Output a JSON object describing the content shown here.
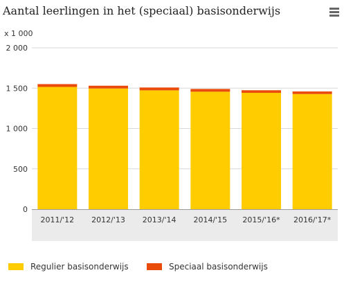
{
  "header": {
    "title": "Aantal leerlingen in het (speciaal) basisonderwijs"
  },
  "menu": {
    "icon": "menu-icon"
  },
  "colors": {
    "regulier": "#FFCC00",
    "speciaal": "#E94C0A",
    "grid": "#D8D8D8",
    "axis_band": "#EBEBEB"
  },
  "chart_data": {
    "type": "bar",
    "stacked": true,
    "unit_label": "x 1 000",
    "categories": [
      "2011/'12",
      "2012/'13",
      "2013/'14",
      "2014/'15",
      "2015/'16*",
      "2016/'17*"
    ],
    "series": [
      {
        "name": "Regulier basisonderwijs",
        "color": "#FFCC00",
        "values": [
          1515,
          1496,
          1473,
          1456,
          1442,
          1427
        ]
      },
      {
        "name": "Speciaal basisonderwijs",
        "color": "#E94C0A",
        "values": [
          35,
          34,
          35,
          34,
          32,
          32
        ]
      }
    ],
    "ylim": [
      0,
      2000
    ],
    "yticks": [
      0,
      500,
      1000,
      1500,
      2000
    ],
    "ytick_labels": [
      "0",
      "500",
      "1 000",
      "1 500",
      "2 000"
    ],
    "grid": true,
    "legend": "bottom"
  }
}
